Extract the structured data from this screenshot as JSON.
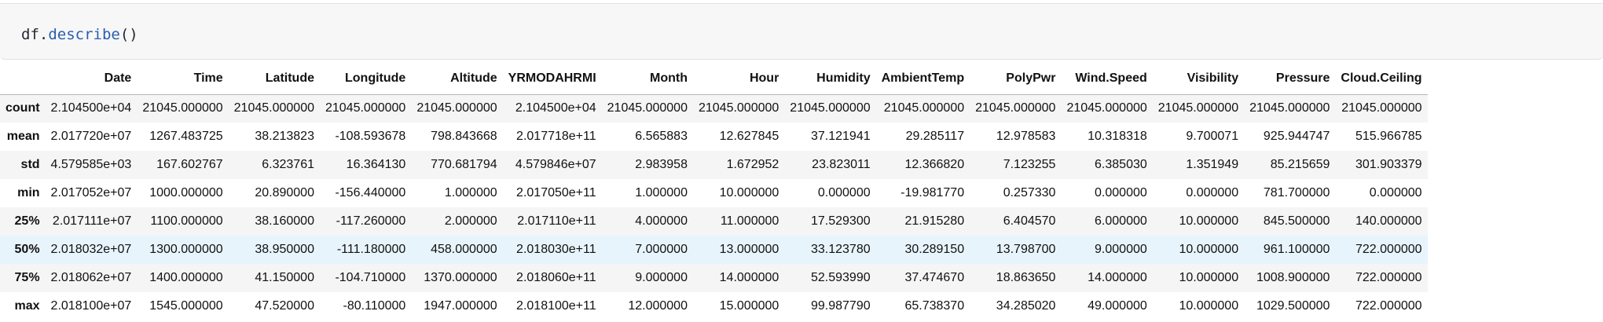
{
  "code": {
    "object": "df",
    "dot": ".",
    "method": "describe",
    "parens": "()"
  },
  "table": {
    "index_header": "",
    "columns": [
      "Date",
      "Time",
      "Latitude",
      "Longitude",
      "Altitude",
      "YRMODAHRMI",
      "Month",
      "Hour",
      "Humidity",
      "AmbientTemp",
      "PolyPwr",
      "Wind.Speed",
      "Visibility",
      "Pressure",
      "Cloud.Ceiling"
    ],
    "rows": [
      {
        "label": "count",
        "cells": [
          "2.104500e+04",
          "21045.000000",
          "21045.000000",
          "21045.000000",
          "21045.000000",
          "2.104500e+04",
          "21045.000000",
          "21045.000000",
          "21045.000000",
          "21045.000000",
          "21045.000000",
          "21045.000000",
          "21045.000000",
          "21045.000000",
          "21045.000000"
        ]
      },
      {
        "label": "mean",
        "cells": [
          "2.017720e+07",
          "1267.483725",
          "38.213823",
          "-108.593678",
          "798.843668",
          "2.017718e+11",
          "6.565883",
          "12.627845",
          "37.121941",
          "29.285117",
          "12.978583",
          "10.318318",
          "9.700071",
          "925.944747",
          "515.966785"
        ]
      },
      {
        "label": "std",
        "cells": [
          "4.579585e+03",
          "167.602767",
          "6.323761",
          "16.364130",
          "770.681794",
          "4.579846e+07",
          "2.983958",
          "1.672952",
          "23.823011",
          "12.366820",
          "7.123255",
          "6.385030",
          "1.351949",
          "85.215659",
          "301.903379"
        ]
      },
      {
        "label": "min",
        "cells": [
          "2.017052e+07",
          "1000.000000",
          "20.890000",
          "-156.440000",
          "1.000000",
          "2.017050e+11",
          "1.000000",
          "10.000000",
          "0.000000",
          "-19.981770",
          "0.257330",
          "0.000000",
          "0.000000",
          "781.700000",
          "0.000000"
        ]
      },
      {
        "label": "25%",
        "cells": [
          "2.017111e+07",
          "1100.000000",
          "38.160000",
          "-117.260000",
          "2.000000",
          "2.017110e+11",
          "4.000000",
          "11.000000",
          "17.529300",
          "21.915280",
          "6.404570",
          "6.000000",
          "10.000000",
          "845.500000",
          "140.000000"
        ]
      },
      {
        "label": "50%",
        "cells": [
          "2.018032e+07",
          "1300.000000",
          "38.950000",
          "-111.180000",
          "458.000000",
          "2.018030e+11",
          "7.000000",
          "13.000000",
          "33.123780",
          "30.289150",
          "13.798700",
          "9.000000",
          "10.000000",
          "961.100000",
          "722.000000"
        ]
      },
      {
        "label": "75%",
        "cells": [
          "2.018062e+07",
          "1400.000000",
          "41.150000",
          "-104.710000",
          "1370.000000",
          "2.018060e+11",
          "9.000000",
          "14.000000",
          "52.593990",
          "37.474670",
          "18.863650",
          "14.000000",
          "10.000000",
          "1008.900000",
          "722.000000"
        ]
      },
      {
        "label": "max",
        "cells": [
          "2.018100e+07",
          "1545.000000",
          "47.520000",
          "-80.110000",
          "1947.000000",
          "2.018100e+11",
          "12.000000",
          "15.000000",
          "99.987790",
          "65.738370",
          "34.285020",
          "49.000000",
          "10.000000",
          "1029.500000",
          "722.000000"
        ]
      }
    ],
    "highlighted_row": "50%"
  },
  "colors": {
    "cell_background": "#f7f7f8",
    "method_blue": "#2a5db0",
    "row_stripe": "#f5f5f5",
    "row_highlight": "#e8f4fc"
  }
}
